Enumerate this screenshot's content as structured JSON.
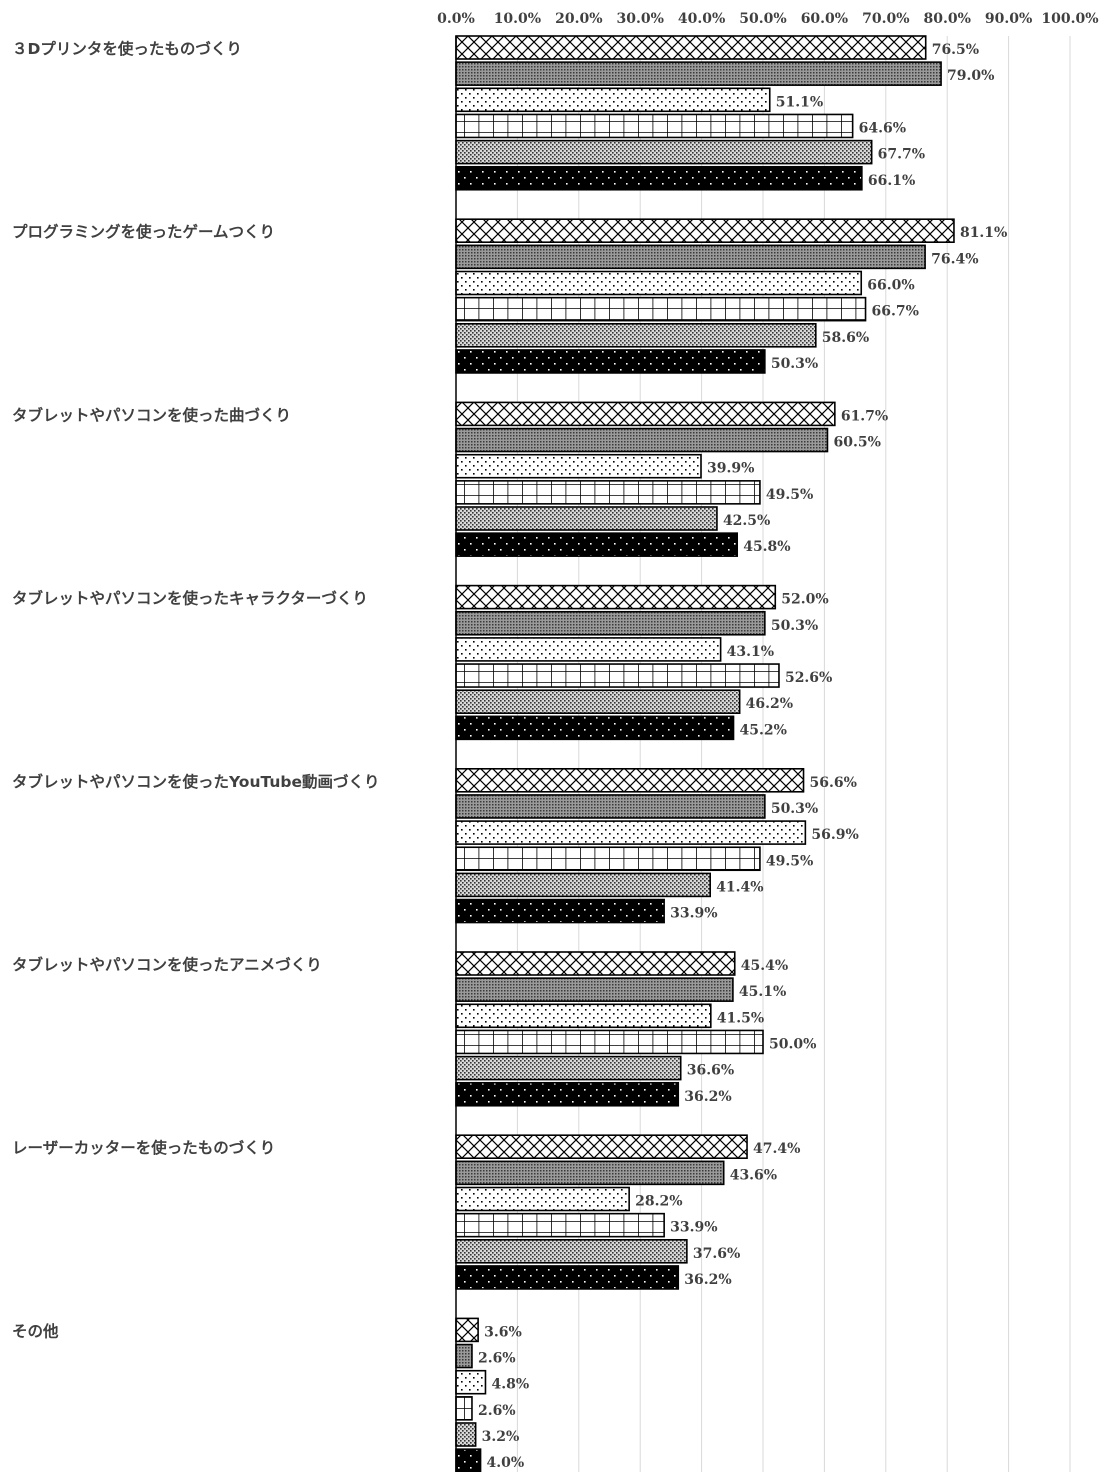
{
  "chart_data": {
    "type": "bar",
    "orientation": "horizontal",
    "xlim": [
      0,
      100
    ],
    "x_ticks": [
      "0.0%",
      "10.0%",
      "20.0%",
      "30.0%",
      "40.0%",
      "50.0%",
      "60.0%",
      "70.0%",
      "80.0%",
      "90.0%",
      "100.0%"
    ],
    "axis_position": "top",
    "grid": true,
    "legend": "none",
    "categories": [
      "３Dプリンタを使ったものづくり",
      "プログラミングを使ったゲームつくり",
      "タブレットやパソコンを使った曲づくり",
      "タブレットやパソコンを使ったキャラクターづくり",
      "タブレットやパソコンを使ったYouTube動画づくり",
      "タブレットやパソコンを使ったアニメづくり",
      "レーザーカッターを使ったものづくり",
      "その他"
    ],
    "series": [
      {
        "pattern": "crosshatch",
        "values": [
          76.5,
          81.1,
          61.7,
          52.0,
          56.6,
          45.4,
          47.4,
          3.6
        ],
        "labels": [
          "76.5%",
          "81.1%",
          "61.7%",
          "52.0%",
          "56.6%",
          "45.4%",
          "47.4%",
          "3.6%"
        ]
      },
      {
        "pattern": "dense-dots-gray",
        "values": [
          79.0,
          76.4,
          60.5,
          50.3,
          50.3,
          45.1,
          43.6,
          2.6
        ],
        "labels": [
          "79.0%",
          "76.4%",
          "60.5%",
          "50.3%",
          "50.3%",
          "45.1%",
          "43.6%",
          "2.6%"
        ]
      },
      {
        "pattern": "sparse-dots",
        "values": [
          51.1,
          66.0,
          39.9,
          43.1,
          56.9,
          41.5,
          28.2,
          4.8
        ],
        "labels": [
          "51.1%",
          "66.0%",
          "39.9%",
          "43.1%",
          "56.9%",
          "41.5%",
          "28.2%",
          "4.8%"
        ]
      },
      {
        "pattern": "grid",
        "values": [
          64.6,
          66.7,
          49.5,
          52.6,
          49.5,
          50.0,
          33.9,
          2.6
        ],
        "labels": [
          "64.6%",
          "66.7%",
          "49.5%",
          "52.6%",
          "49.5%",
          "50.0%",
          "33.9%",
          "2.6%"
        ]
      },
      {
        "pattern": "fine-dots",
        "values": [
          67.7,
          58.6,
          42.5,
          46.2,
          41.4,
          36.6,
          37.6,
          3.2
        ],
        "labels": [
          "67.7%",
          "58.6%",
          "42.5%",
          "46.2%",
          "41.4%",
          "36.6%",
          "37.6%",
          "3.2%"
        ]
      },
      {
        "pattern": "black-white-dots",
        "values": [
          66.1,
          50.3,
          45.8,
          45.2,
          33.9,
          36.2,
          36.2,
          4.0
        ],
        "labels": [
          "66.1%",
          "50.3%",
          "45.8%",
          "45.2%",
          "33.9%",
          "36.2%",
          "36.2%",
          "4.0%"
        ]
      }
    ],
    "colors": {
      "text": "#404040",
      "grid": "#d9d9d9",
      "stroke": "#000000",
      "fill_dark": "#000000",
      "fill_mid": "#7f7f7f"
    }
  }
}
